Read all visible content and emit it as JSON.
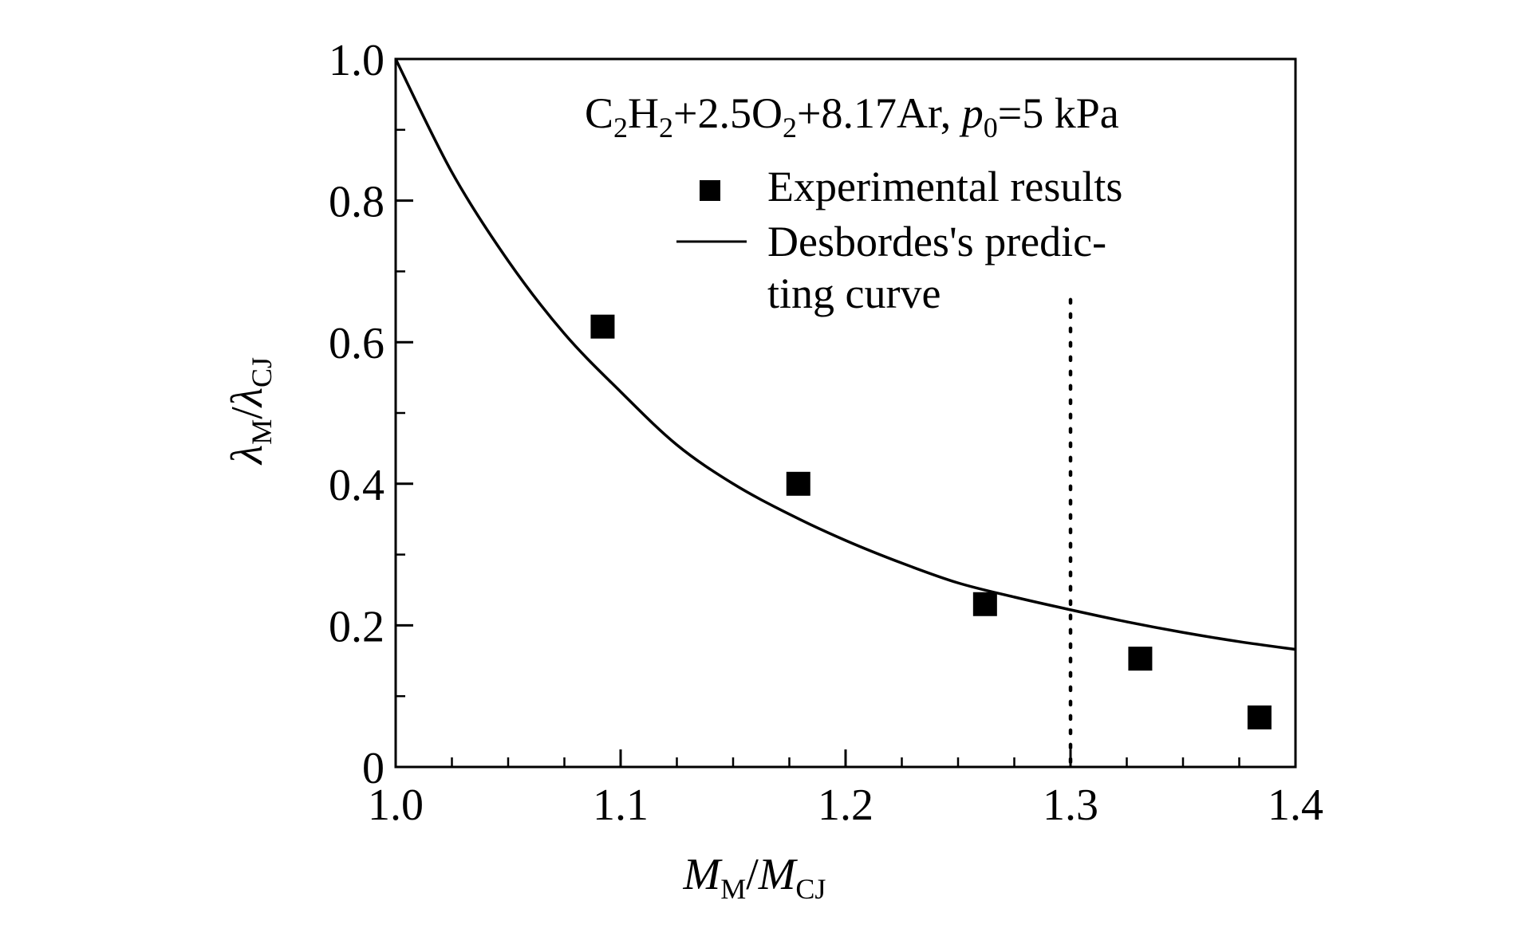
{
  "chart_data": {
    "type": "scatter",
    "title": "",
    "annotation": {
      "c": "C",
      "c_sub": "2",
      "h": "H",
      "h_sub": "2",
      "mid": "+2.5O",
      "o_sub": "2",
      "tail": "+8.17Ar, ",
      "p": "p",
      "p_sub": "0",
      "pressure": "=5 kPa"
    },
    "xlabel": {
      "main": "M",
      "sub1": "M",
      "slash": "/",
      "main2": "M",
      "sub2": "CJ"
    },
    "ylabel": {
      "main": "λ",
      "sub1": "M",
      "slash": "/",
      "main2": "λ",
      "sub2": "CJ"
    },
    "xlim": [
      1.0,
      1.4
    ],
    "ylim": [
      0,
      1.0
    ],
    "xticks": [
      1.0,
      1.1,
      1.2,
      1.3,
      1.4
    ],
    "xtick_labels": [
      "1.0",
      "1.1",
      "1.2",
      "1.3",
      "1.4"
    ],
    "yticks": [
      0,
      0.2,
      0.4,
      0.6,
      0.8,
      1.0
    ],
    "ytick_labels": [
      "0",
      "0.2",
      "0.4",
      "0.6",
      "0.8",
      "1.0"
    ],
    "x_minor_step": 0.025,
    "y_minor_step": 0.1,
    "series": [
      {
        "name": "Experimental results",
        "kind": "scatter",
        "marker": "square",
        "x": [
          1.092,
          1.179,
          1.262,
          1.331,
          1.384
        ],
        "y": [
          0.622,
          0.4,
          0.23,
          0.153,
          0.07
        ]
      },
      {
        "name": "Desbordes's predicting curve",
        "kind": "line",
        "x": [
          1.0,
          1.025,
          1.05,
          1.075,
          1.1,
          1.125,
          1.15,
          1.175,
          1.2,
          1.225,
          1.25,
          1.275,
          1.3,
          1.325,
          1.35,
          1.375,
          1.4
        ],
        "y": [
          1.0,
          0.84,
          0.715,
          0.612,
          0.53,
          0.455,
          0.4,
          0.357,
          0.32,
          0.288,
          0.26,
          0.24,
          0.222,
          0.205,
          0.19,
          0.177,
          0.166
        ]
      }
    ],
    "legend": [
      {
        "label": "Experimental results",
        "marker": "square"
      },
      {
        "label_line1": "Desbordes's predic-",
        "label_line2": "ting curve",
        "marker": "line"
      }
    ],
    "reference_line": {
      "x": 1.3,
      "style": "dotted"
    }
  }
}
